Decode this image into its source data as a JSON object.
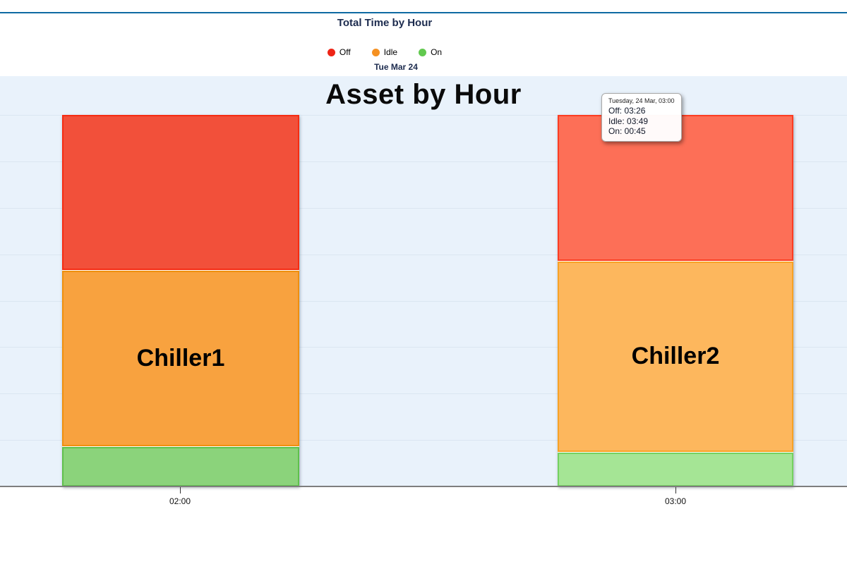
{
  "header": {
    "title": "Total Time by Hour",
    "date_label": "Tue Mar 24",
    "legend": [
      {
        "label": "Off",
        "color": "#ee2416"
      },
      {
        "label": "Idle",
        "color": "#f59122"
      },
      {
        "label": "On",
        "color": "#62c94f"
      }
    ]
  },
  "tooltip": {
    "header": "Tuesday, 24 Mar, 03:00",
    "lines": [
      "Off: 03:26",
      "Idle: 03:49",
      "On: 00:45"
    ]
  },
  "colors": {
    "top_rule": "#0e6aa3",
    "plot_bg": "#e9f2fb",
    "gridline": "#dbe6f1",
    "axis_line": "#7e7e7e",
    "header_text": "#1c2b4e"
  },
  "chart_data": {
    "type": "bar",
    "stacked": true,
    "title": "Asset by Hour",
    "x_categories": [
      "02:00",
      "03:00"
    ],
    "series_names": [
      "Off",
      "Idle",
      "On"
    ],
    "unit": "minutes",
    "y_axis": {
      "min_minutes": 0,
      "max_minutes": 480,
      "grid_interval_minutes": 60,
      "labels_visible": false
    },
    "legend_position": "top",
    "bars": [
      {
        "label": "Chiller1",
        "category": "02:00",
        "hovered": false,
        "segments": [
          {
            "series": "Off",
            "minutes": 219,
            "time": "03:39",
            "estimated": true,
            "fill": "#f2503a",
            "border": "#f52c12"
          },
          {
            "series": "Idle",
            "minutes": 208,
            "time": "03:28",
            "estimated": true,
            "fill": "#f8a23f",
            "border": "#ef8f0e"
          },
          {
            "series": "On",
            "minutes": 53,
            "time": "00:53",
            "estimated": true,
            "fill": "#8bd37b",
            "border": "#5fc04c"
          }
        ]
      },
      {
        "label": "Chiller2",
        "category": "03:00",
        "hovered": true,
        "segments": [
          {
            "series": "Off",
            "minutes": 206,
            "time": "03:26",
            "estimated": false,
            "fill": "#fd6f57",
            "border": "#fc3d22"
          },
          {
            "series": "Idle",
            "minutes": 229,
            "time": "03:49",
            "estimated": false,
            "fill": "#fdb75d",
            "border": "#f8a225"
          },
          {
            "series": "On",
            "minutes": 45,
            "time": "00:45",
            "estimated": false,
            "fill": "#a5e595",
            "border": "#74d160"
          }
        ]
      }
    ]
  }
}
